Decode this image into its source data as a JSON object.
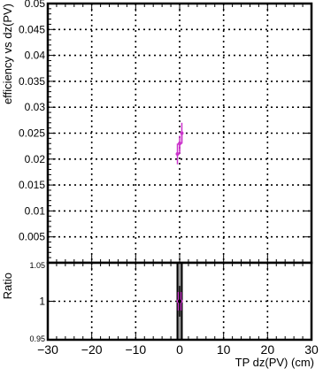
{
  "chart_data": [
    {
      "type": "line",
      "ylabel": "efficiency vs dz(PV)",
      "xlim": [
        -30,
        30
      ],
      "ylim": [
        0,
        0.05
      ],
      "yticks": [
        0.005,
        0.01,
        0.015,
        0.02,
        0.025,
        0.03,
        0.035,
        0.04,
        0.045,
        0.05
      ],
      "ytick_labels": [
        "0.005",
        "0.01",
        "0.015",
        "0.02",
        "0.025",
        "0.03",
        "0.035",
        "0.04",
        "0.045",
        "0.05"
      ],
      "grid": true,
      "series": [
        {
          "color": "#cc33cc",
          "marker": "circle",
          "x": [
            -0.5,
            0,
            0.5
          ],
          "y": [
            0.021,
            0.023,
            0.025
          ],
          "yerr": [
            0.002,
            0.0015,
            0.002
          ]
        }
      ]
    },
    {
      "type": "line",
      "ylabel": "Ratio",
      "xlabel": "TP dz(PV) (cm)",
      "xlim": [
        -30,
        30
      ],
      "ylim": [
        0.95,
        1.05
      ],
      "yticks": [
        0.95,
        1,
        1.05
      ],
      "ytick_labels": [
        "0.95",
        "1",
        "1.05"
      ],
      "xticks": [
        -30,
        -20,
        -10,
        0,
        10,
        20,
        30
      ],
      "xtick_labels": [
        "−30",
        "−20",
        "−10",
        "0",
        "10",
        "20",
        "30"
      ],
      "grid": true,
      "band": {
        "x_from": -0.5,
        "x_to": 0.5,
        "color": "#999999"
      },
      "series": [
        {
          "color": "#cc33cc",
          "marker": "circle",
          "x": [
            -0.3,
            0.3
          ],
          "y": [
            1.0,
            1.0
          ],
          "yerr": [
            0.012,
            0.012
          ]
        },
        {
          "color": "#000000",
          "marker": "circle",
          "x": [
            0
          ],
          "y": [
            1.0
          ],
          "yerr": [
            0.02
          ]
        }
      ]
    }
  ]
}
